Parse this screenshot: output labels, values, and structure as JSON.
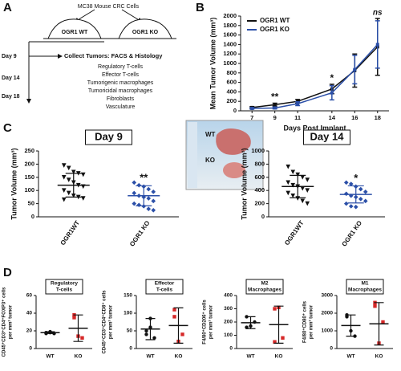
{
  "panels": [
    "A",
    "B",
    "C",
    "D"
  ],
  "diagram": {
    "cells": "MC38 Mouse CRC Cells",
    "mice": [
      "OGR1 WT",
      "OGR1 KO"
    ],
    "days": [
      "Day 9",
      "Day 14",
      "Day 18"
    ],
    "collect": "Collect Tumors: FACS & Histology",
    "items": [
      "Regulatory T-cells",
      "Effector T-cells",
      "Tumorigenic macrophages",
      "Tumoricidal macrophages",
      "Fibroblasts",
      "Vasculature"
    ]
  },
  "photo": {
    "labels": [
      "WT",
      "KO"
    ]
  },
  "chart_data": [
    {
      "type": "line",
      "ylabel": [
        "Mean Tumor Volume (mm³)"
      ],
      "xlabel": "Days Post Implant",
      "xlim": [
        6,
        19
      ],
      "xticks": [
        7,
        9,
        11,
        14,
        16,
        18
      ],
      "ylim": [
        0,
        2000
      ],
      "yticks": [
        0,
        200,
        400,
        600,
        800,
        1000,
        1200,
        1400,
        1600,
        1800,
        2000
      ],
      "x": [
        7,
        9,
        11,
        14,
        16,
        18
      ],
      "series": [
        {
          "name": "OGR1 WT",
          "color": "#111111",
          "values": [
            70,
            130,
            200,
            460,
            850,
            1350
          ],
          "errors": [
            20,
            30,
            40,
            100,
            350,
            600
          ]
        },
        {
          "name": "OGR1 KO",
          "color": "#2b4fa8",
          "values": [
            50,
            60,
            150,
            380,
            870,
            1400
          ],
          "errors": [
            15,
            20,
            40,
            150,
            300,
            500
          ]
        }
      ],
      "annotations": [
        {
          "x": 9,
          "text": "**"
        },
        {
          "x": 14,
          "text": "*"
        },
        {
          "x": 18,
          "text": "ns"
        }
      ]
    },
    {
      "type": "dotplot",
      "title": [
        "Day 9"
      ],
      "ylabel": [
        "Tumor Volume (mm³)"
      ],
      "ylim": [
        0,
        250
      ],
      "yticks": [
        0,
        50,
        100,
        150,
        200,
        250
      ],
      "categories": [
        "OGR1WT",
        "OGR1 KO"
      ],
      "groups": [
        {
          "color": "#111111",
          "marker": "tri",
          "points": [
            195,
            185,
            170,
            165,
            160,
            150,
            140,
            130,
            120,
            115,
            100,
            90,
            80,
            75,
            70,
            65
          ],
          "mean": 120,
          "sd": 45
        },
        {
          "color": "#2b4fa8",
          "marker": "diamond",
          "points": [
            130,
            120,
            115,
            105,
            95,
            90,
            80,
            75,
            70,
            60,
            50,
            45,
            40,
            30,
            25
          ],
          "mean": 80,
          "sd": 38,
          "annotation": "**"
        }
      ]
    },
    {
      "type": "dotplot",
      "title": [
        "Day 14"
      ],
      "ylabel": [
        "Tumor Volume (mm³)"
      ],
      "ylim": [
        0,
        1000
      ],
      "yticks": [
        0,
        200,
        400,
        600,
        800,
        1000
      ],
      "categories": [
        "OGR1WT",
        "OGR1 KO"
      ],
      "groups": [
        {
          "color": "#111111",
          "marker": "tri",
          "points": [
            760,
            680,
            640,
            600,
            560,
            520,
            480,
            460,
            430,
            400,
            360,
            320,
            280,
            240,
            200
          ],
          "mean": 460,
          "sd": 170
        },
        {
          "color": "#2b4fa8",
          "marker": "diamond",
          "points": [
            520,
            500,
            460,
            420,
            380,
            350,
            320,
            300,
            270,
            240,
            200,
            160,
            150
          ],
          "mean": 340,
          "sd": 130,
          "annotation": "*"
        }
      ]
    },
    {
      "type": "dotplot",
      "title": [
        "Regulatory",
        "T-cells"
      ],
      "ylabel": [
        "CD45⁺CD3⁺CD4⁺FOXP3⁺ cells",
        "per mm³ tumor"
      ],
      "ylim": [
        0,
        60
      ],
      "yticks": [
        0,
        20,
        40,
        60
      ],
      "categories": [
        "WT",
        "KO"
      ],
      "groups": [
        {
          "color": "#111111",
          "marker": "circle",
          "points": [
            17,
            18,
            17,
            18,
            19
          ],
          "mean": 18,
          "sd": 1
        },
        {
          "color": "#d62828",
          "marker": "square",
          "points": [
            38,
            14,
            12,
            35
          ],
          "mean": 23,
          "sd": 15
        }
      ]
    },
    {
      "type": "dotplot",
      "title": [
        "Effector",
        "T-cells"
      ],
      "ylabel": [
        "CD45⁺CD3⁺CD4⁺CD8⁺ cells",
        "per mm³ tumor"
      ],
      "ylim": [
        0,
        150
      ],
      "yticks": [
        0,
        50,
        100,
        150
      ],
      "categories": [
        "WT",
        "KO"
      ],
      "groups": [
        {
          "color": "#111111",
          "marker": "circle",
          "points": [
            50,
            85,
            30,
            40,
            60
          ],
          "mean": 55,
          "sd": 30
        },
        {
          "color": "#d62828",
          "marker": "square",
          "points": [
            110,
            20,
            40,
            90
          ],
          "mean": 65,
          "sd": 50
        }
      ]
    },
    {
      "type": "dotplot",
      "title": [
        "M2",
        "Macrophages"
      ],
      "ylabel": [
        "F4/80⁺CD206⁺ cells",
        "per mm³ tumor"
      ],
      "ylim": [
        0,
        400
      ],
      "yticks": [
        0,
        100,
        200,
        300,
        400
      ],
      "categories": [
        "WT",
        "KO"
      ],
      "groups": [
        {
          "color": "#111111",
          "marker": "circle",
          "points": [
            240,
            170,
            200,
            160
          ],
          "mean": 195,
          "sd": 45
        },
        {
          "color": "#d62828",
          "marker": "square",
          "points": [
            300,
            310,
            80,
            50
          ],
          "mean": 180,
          "sd": 140
        }
      ]
    },
    {
      "type": "dotplot",
      "title": [
        "M1",
        "Macrophages"
      ],
      "ylabel": [
        "F4/80⁺CD80⁺ cells",
        "per mm³ tumor"
      ],
      "ylim": [
        0,
        3000
      ],
      "yticks": [
        0,
        1000,
        2000,
        3000
      ],
      "categories": [
        "WT",
        "KO"
      ],
      "groups": [
        {
          "color": "#111111",
          "marker": "circle",
          "points": [
            1900,
            1000,
            700,
            1800
          ],
          "mean": 1300,
          "sd": 600
        },
        {
          "color": "#d62828",
          "marker": "square",
          "points": [
            2600,
            300,
            1500,
            2400
          ],
          "mean": 1400,
          "sd": 1200
        }
      ]
    }
  ]
}
